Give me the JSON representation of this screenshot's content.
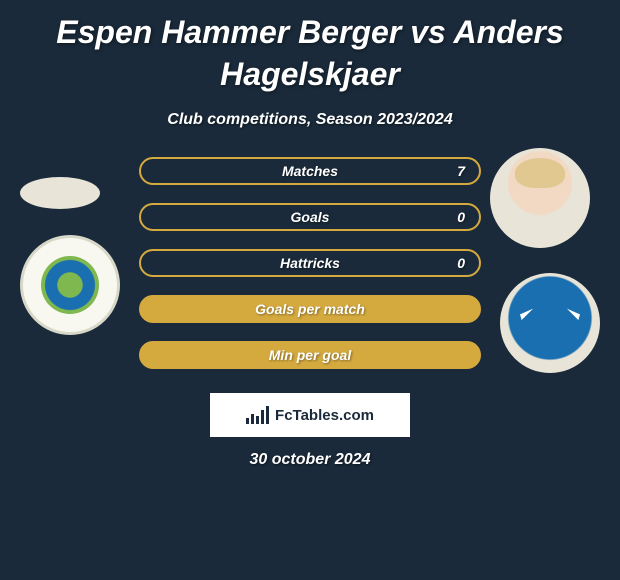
{
  "title": "Espen Hammer Berger vs Anders Hagelskjaer",
  "subtitle": "Club competitions, Season 2023/2024",
  "stats": [
    {
      "label": "Matches",
      "style": "outline",
      "value": "7"
    },
    {
      "label": "Goals",
      "style": "outline",
      "value": "0"
    },
    {
      "label": "Hattricks",
      "style": "outline",
      "value": "0"
    },
    {
      "label": "Goals per match",
      "style": "filled",
      "value": ""
    },
    {
      "label": "Min per goal",
      "style": "filled",
      "value": ""
    }
  ],
  "footer_brand": "FcTables.com",
  "date": "30 october 2024",
  "colors": {
    "background": "#1a2a3a",
    "accent": "#d4aa3f",
    "text": "#ffffff",
    "logo_bg": "#ffffff",
    "logo_fg": "#1a2a3a"
  },
  "logo_bar_heights": [
    6,
    10,
    8,
    14,
    18
  ]
}
